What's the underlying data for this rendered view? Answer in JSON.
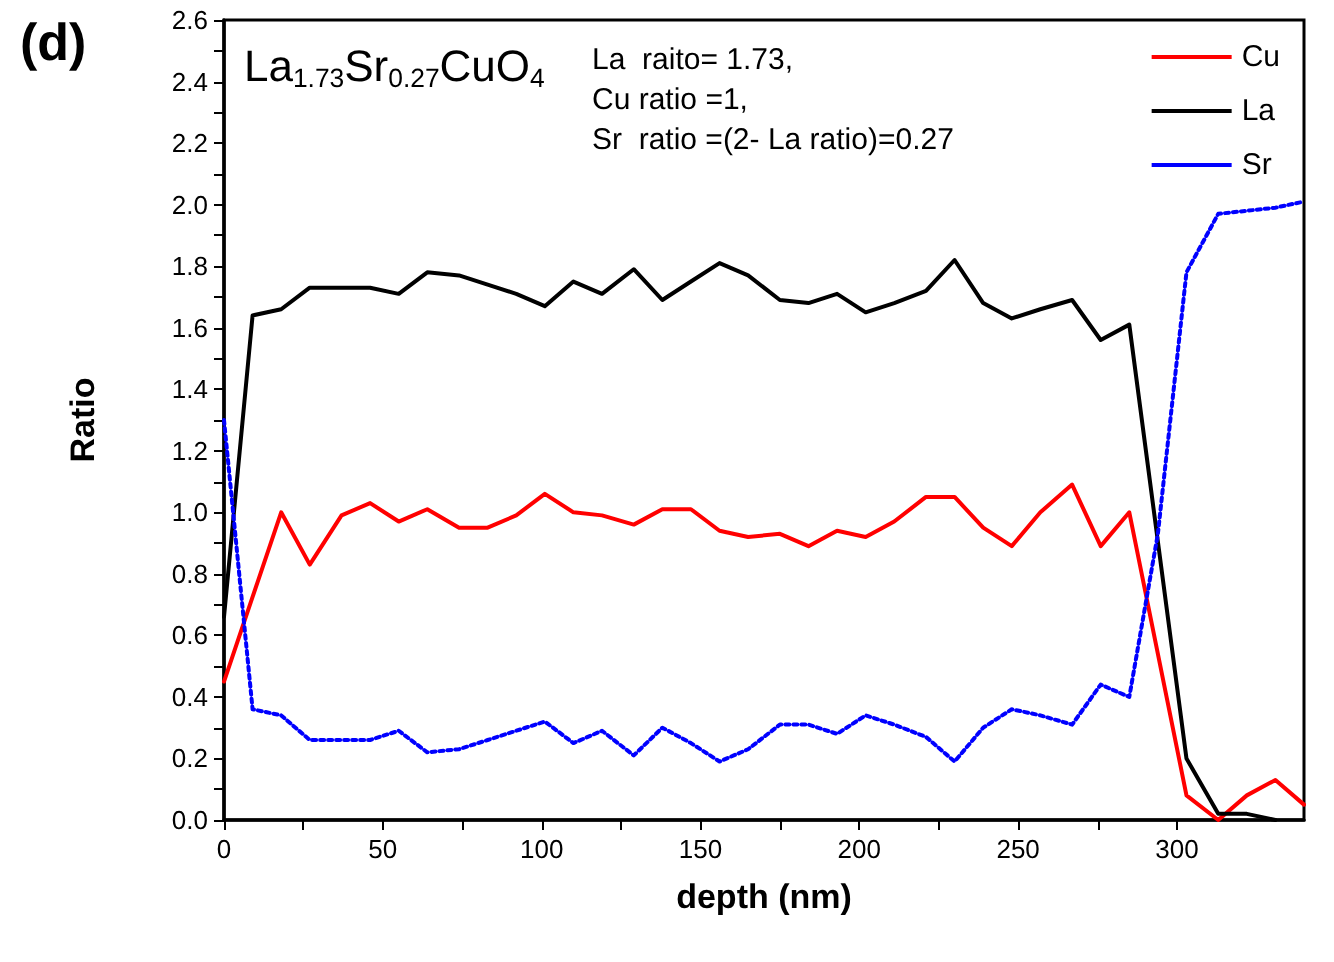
{
  "chart_data": {
    "type": "line",
    "xlabel": "depth (nm)",
    "ylabel": "Ratio",
    "annotations": [
      "(d)",
      "La$_{1.73}$Sr$_{0.27}$CuO$_{4}$",
      "La  raito= 1.73,\nCu ratio =1,\nSr  ratio =(2- La ratio)=0.27"
    ],
    "xlim": [
      0,
      340
    ],
    "ylim": [
      0,
      2.6
    ],
    "xticks": [
      0,
      50,
      100,
      150,
      200,
      250,
      300
    ],
    "yticks": [
      {
        "value": 0,
        "label": "0.0"
      },
      {
        "value": 0.2,
        "label": "0.2"
      },
      {
        "value": 0.4,
        "label": "0.4"
      },
      {
        "value": 0.6,
        "label": "0.6"
      },
      {
        "value": 0.8,
        "label": "0.8"
      },
      {
        "value": 1,
        "label": "1.0"
      },
      {
        "value": 1.2,
        "label": "1.2"
      },
      {
        "value": 1.4,
        "label": "1.4"
      },
      {
        "value": 1.6,
        "label": "1.6"
      },
      {
        "value": 1.8,
        "label": "1.8"
      },
      {
        "value": 2,
        "label": "2.0"
      },
      {
        "value": 2.2,
        "label": "2.2"
      },
      {
        "value": 2.4,
        "label": "2.4"
      },
      {
        "value": 2.6,
        "label": "2.6"
      }
    ],
    "grid": false,
    "legend": "top right",
    "marker": "none",
    "series": [
      {
        "name": "Cu",
        "color": "#ff0000",
        "line_style": "solid",
        "x": [
          0,
          18,
          27,
          37,
          46,
          55,
          64,
          74,
          83,
          92,
          101,
          110,
          119,
          129,
          138,
          147,
          156,
          165,
          175,
          184,
          193,
          202,
          211,
          221,
          230,
          239,
          248,
          257,
          267,
          276,
          285,
          303,
          313,
          322,
          331,
          340
        ],
        "values": [
          0.45,
          1.0,
          0.83,
          0.99,
          1.03,
          0.97,
          1.01,
          0.95,
          0.95,
          0.99,
          1.06,
          1.0,
          0.99,
          0.96,
          1.01,
          1.01,
          0.94,
          0.92,
          0.93,
          0.89,
          0.94,
          0.92,
          0.97,
          1.05,
          1.05,
          0.95,
          0.89,
          1.0,
          1.09,
          0.89,
          1.0,
          0.08,
          0.0,
          0.08,
          0.13,
          0.05
        ]
      },
      {
        "name": "La",
        "color": "#000000",
        "line_style": "solid",
        "x": [
          0,
          9,
          18,
          27,
          37,
          46,
          55,
          64,
          74,
          83,
          92,
          101,
          110,
          119,
          129,
          138,
          147,
          156,
          165,
          175,
          184,
          193,
          202,
          211,
          221,
          230,
          239,
          248,
          257,
          267,
          276,
          285,
          303,
          313,
          322,
          331
        ],
        "values": [
          0.66,
          1.64,
          1.66,
          1.73,
          1.73,
          1.73,
          1.71,
          1.78,
          1.77,
          1.74,
          1.71,
          1.67,
          1.75,
          1.71,
          1.79,
          1.69,
          1.75,
          1.81,
          1.77,
          1.69,
          1.68,
          1.71,
          1.65,
          1.68,
          1.72,
          1.82,
          1.68,
          1.63,
          1.66,
          1.69,
          1.56,
          1.61,
          0.2,
          0.02,
          0.02,
          0.0
        ]
      },
      {
        "name": "Sr",
        "color": "#0000ff",
        "line_style": "dotted",
        "x": [
          0,
          9,
          18,
          27,
          37,
          46,
          55,
          64,
          74,
          83,
          92,
          101,
          110,
          119,
          129,
          138,
          147,
          156,
          165,
          175,
          184,
          193,
          202,
          211,
          221,
          230,
          239,
          248,
          257,
          267,
          276,
          285,
          294,
          303,
          313,
          322,
          331,
          340
        ],
        "values": [
          1.3,
          0.36,
          0.34,
          0.26,
          0.26,
          0.26,
          0.29,
          0.22,
          0.23,
          0.26,
          0.29,
          0.32,
          0.25,
          0.29,
          0.21,
          0.3,
          0.25,
          0.19,
          0.23,
          0.31,
          0.31,
          0.28,
          0.34,
          0.31,
          0.27,
          0.19,
          0.3,
          0.36,
          0.34,
          0.31,
          0.44,
          0.4,
          0.93,
          1.78,
          1.97,
          1.98,
          1.99,
          2.01
        ]
      }
    ]
  }
}
